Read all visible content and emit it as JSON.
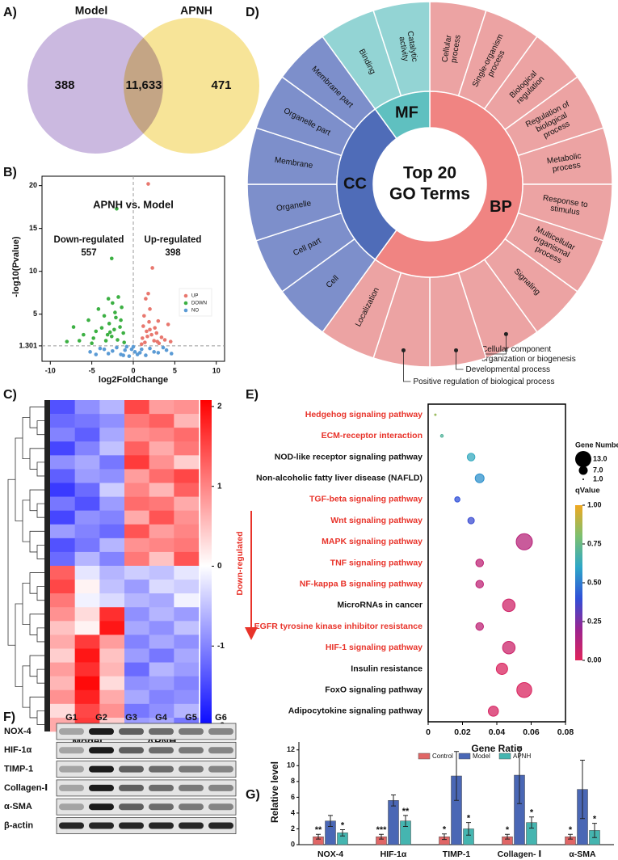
{
  "chart_data": [
    {
      "panel": "A)",
      "type": "venn",
      "sets": [
        "Model",
        "APNH"
      ],
      "colors": [
        "#c2addb",
        "#f6df86"
      ],
      "values": [
        388,
        11633,
        471
      ],
      "value_labels": [
        "388",
        "11,633",
        "471"
      ]
    },
    {
      "panel": "B)",
      "type": "scatter",
      "title": "APNH vs. Model",
      "xlabel": "log2FoldChange",
      "ylabel": "-log10(Pvalue)",
      "xlim": [
        -11,
        11
      ],
      "ylim": [
        -0.5,
        21.1
      ],
      "xticks": [
        -10,
        -5,
        0,
        5,
        10
      ],
      "yticks": [
        1.301,
        5,
        10,
        15,
        20
      ],
      "groups": [
        {
          "label": "Down-regulated",
          "count": 557
        },
        {
          "label": "Up-regulated",
          "count": 398
        }
      ],
      "series": [
        {
          "name": "UP",
          "color": "#e8776e",
          "x": [
            1.8,
            2.3,
            1.8,
            1.5,
            2.0,
            3.0,
            4.2,
            2.6,
            1.3,
            1.6,
            2.2,
            3.4,
            4.5,
            1.1,
            2.8,
            1.9,
            3.8,
            1.4,
            2.5,
            3.1,
            1.2,
            2.0,
            1.7,
            2.9,
            1.0
          ],
          "y": [
            20.2,
            10.4,
            7.4,
            6.8,
            5.6,
            4.2,
            3.8,
            3.4,
            4.8,
            3.0,
            2.6,
            2.3,
            1.8,
            2.2,
            2.8,
            4.1,
            2.0,
            1.7,
            1.9,
            1.6,
            3.6,
            3.2,
            2.4,
            1.8,
            1.5
          ]
        },
        {
          "name": "DOWN",
          "color": "#3cb043",
          "x": [
            -2.0,
            -2.6,
            -4.2,
            -7.2,
            -8.0,
            -3.5,
            -3.0,
            -2.5,
            -1.8,
            -5.4,
            -6.0,
            -4.8,
            -3.8,
            -2.9,
            -2.2,
            -1.5,
            -1.2,
            -2.6,
            -3.3,
            -4.5,
            -1.6,
            -1.9,
            -5.0,
            -6.5,
            -2.3,
            -1.4,
            -2.8,
            -3.1,
            -1.1,
            -2.1
          ],
          "y": [
            17.3,
            11.5,
            5.6,
            3.5,
            1.8,
            4.8,
            6.8,
            6.3,
            7.0,
            4.3,
            2.6,
            2.2,
            3.4,
            3.9,
            5.2,
            4.3,
            2.8,
            2.4,
            1.9,
            3.0,
            3.5,
            2.0,
            1.6,
            1.9,
            3.2,
            5.8,
            2.9,
            2.6,
            1.7,
            4.6
          ]
        },
        {
          "name": "NO",
          "color": "#5b9bd5",
          "x": [
            -5.2,
            -4.0,
            -3.0,
            -2.0,
            -1.0,
            0.0,
            0.5,
            1.0,
            2.0,
            3.0,
            4.0,
            -0.5,
            1.5,
            -1.5,
            -3.5,
            2.5,
            3.6,
            -2.5,
            0.2,
            -0.8,
            -4.5,
            4.6,
            -0.2,
            0.8,
            -1.2
          ],
          "y": [
            0.6,
            1.0,
            0.4,
            1.1,
            0.8,
            1.2,
            0.3,
            0.9,
            1.0,
            0.5,
            0.8,
            0.1,
            0.2,
            0.3,
            0.9,
            0.6,
            1.1,
            0.7,
            0.6,
            1.2,
            0.3,
            0.4,
            0.9,
            0.5,
            0.2
          ]
        }
      ]
    },
    {
      "panel": "C)",
      "type": "heatmap",
      "groups": [
        "Model",
        "APNH"
      ],
      "colormap": [
        "#0000ff",
        "#ffffff",
        "#ff0000"
      ],
      "zlim": [
        -2.07,
        2.08
      ],
      "zticks": [
        2,
        1,
        0,
        -1,
        -2
      ],
      "values": [
        [
          -1.4,
          -0.9,
          -0.6,
          1.5,
          0.8,
          0.9
        ],
        [
          -1.2,
          -1.1,
          -0.9,
          1.1,
          1.3,
          0.6
        ],
        [
          -1.0,
          -1.3,
          -0.7,
          0.9,
          1.0,
          1.2
        ],
        [
          -1.5,
          -1.0,
          -0.5,
          1.3,
          0.7,
          1.1
        ],
        [
          -0.9,
          -0.7,
          -1.1,
          1.6,
          0.9,
          0.4
        ],
        [
          -1.3,
          -0.8,
          -0.9,
          0.8,
          1.2,
          1.5
        ],
        [
          -1.6,
          -1.2,
          -0.4,
          1.0,
          0.6,
          1.3
        ],
        [
          -1.1,
          -1.4,
          -0.8,
          1.2,
          1.1,
          0.7
        ],
        [
          -1.5,
          -0.9,
          -1.0,
          0.7,
          1.4,
          0.9
        ],
        [
          -0.8,
          -1.0,
          -1.2,
          1.4,
          0.8,
          1.0
        ],
        [
          -1.4,
          -1.1,
          -0.6,
          0.9,
          1.0,
          1.1
        ],
        [
          -1.2,
          -0.6,
          -1.0,
          1.1,
          0.5,
          1.4
        ],
        [
          1.3,
          -0.2,
          -0.6,
          -0.4,
          -0.5,
          -0.2
        ],
        [
          1.5,
          0.1,
          -0.5,
          -0.8,
          -0.3,
          -0.4
        ],
        [
          1.1,
          -0.1,
          -0.3,
          -0.6,
          -0.7,
          -0.1
        ],
        [
          0.9,
          0.3,
          1.7,
          -0.9,
          -0.6,
          -0.8
        ],
        [
          0.5,
          0.1,
          1.9,
          -0.7,
          -0.9,
          -0.5
        ],
        [
          0.7,
          1.6,
          0.8,
          -1.0,
          -0.7,
          -0.9
        ],
        [
          0.4,
          1.9,
          0.5,
          -0.8,
          -1.1,
          -0.7
        ],
        [
          0.8,
          1.7,
          0.6,
          -1.2,
          -0.6,
          -0.8
        ],
        [
          0.6,
          2.0,
          0.3,
          -0.9,
          -0.8,
          -1.0
        ],
        [
          0.9,
          1.8,
          0.7,
          -0.7,
          -1.0,
          -0.9
        ],
        [
          0.3,
          1.5,
          0.9,
          -1.1,
          -0.9,
          -0.6
        ],
        [
          0.7,
          1.6,
          0.4,
          -0.8,
          -0.7,
          -1.1
        ]
      ]
    },
    {
      "panel": "D)",
      "type": "sunburst",
      "center": [
        "Top 20",
        "GO Terms"
      ],
      "groups": [
        {
          "name": "BP",
          "color": "#f08482",
          "term_color": "#eca3a3",
          "terms": [
            {
              "label": "Cellular process"
            },
            {
              "label": "Single-organism process"
            },
            {
              "label": "Biological regulation"
            },
            {
              "label": "Regulation of biological process"
            },
            {
              "label": "Metabolic process"
            },
            {
              "label": "Response to stimulus"
            },
            {
              "label": "Multicellular organismal process"
            },
            {
              "label": "Signaling"
            },
            {
              "label": "Cellular component organization or biogenesis",
              "callout": true
            },
            {
              "label": "Developmental process",
              "callout": true
            },
            {
              "label": "Positive regulation of biological process",
              "callout": true
            },
            {
              "label": "Localization"
            }
          ]
        },
        {
          "name": "CC",
          "color": "#4f6cb8",
          "term_color": "#7d8fcb",
          "terms": [
            {
              "label": "Cell"
            },
            {
              "label": "Cell part"
            },
            {
              "label": "Organelle"
            },
            {
              "label": "Membrane"
            },
            {
              "label": "Organelle part"
            },
            {
              "label": "Membrane part"
            }
          ]
        },
        {
          "name": "MF",
          "color": "#5fc0c0",
          "term_color": "#93d4d4",
          "terms": [
            {
              "label": "Binding"
            },
            {
              "label": "Catalytic activity"
            }
          ]
        }
      ]
    },
    {
      "panel": "E)",
      "type": "bubble",
      "xlabel": "Gene Ratio",
      "annotation": "Down-regulated",
      "categories": [
        "Hedgehog signaling pathway",
        "ECM-receptor interaction",
        "NOD-like receptor signaling pathway",
        "Non-alcoholic fatty liver disease (NAFLD)",
        "TGF-beta signaling pathway",
        "Wnt signaling pathway",
        "MAPK signaling pathway",
        "TNF signaling pathway",
        "NF-kappa B signaling pathway",
        "MicroRNAs in cancer",
        "EGFR tyrosine kinase inhibitor resistance",
        "HIF-1 signaling pathway",
        "Insulin resistance",
        "FoxO signaling pathway",
        "Adipocytokine signaling pathway"
      ],
      "label_colors": [
        "#e8332a",
        "#e8332a",
        "#111111",
        "#111111",
        "#e8332a",
        "#e8332a",
        "#e8332a",
        "#e8332a",
        "#e8332a",
        "#111111",
        "#e8332a",
        "#e8332a",
        "#111111",
        "#111111",
        "#111111"
      ],
      "x": [
        0.0042,
        0.008,
        0.025,
        0.03,
        0.017,
        0.025,
        0.056,
        0.03,
        0.03,
        0.047,
        0.03,
        0.047,
        0.043,
        0.056,
        0.038
      ],
      "sizes": [
        1,
        2,
        6,
        7,
        4,
        5,
        13,
        6,
        6,
        10,
        6,
        10,
        9,
        12,
        8
      ],
      "qvalues": [
        0.85,
        0.7,
        0.62,
        0.55,
        0.4,
        0.38,
        0.12,
        0.1,
        0.1,
        0.05,
        0.1,
        0.06,
        0.02,
        0.02,
        0.03
      ],
      "xlim": [
        0,
        0.08
      ],
      "xticks": [
        0,
        0.02,
        0.04,
        0.06,
        0.08
      ],
      "size_title": "Gene Number",
      "size_ticks": [
        {
          "value": 13,
          "label": "13.0"
        },
        {
          "value": 7,
          "label": "7.0"
        },
        {
          "value": 1,
          "label": "1.0"
        }
      ],
      "color_title": "qValue",
      "qlim": [
        0,
        1
      ],
      "qticks": [
        {
          "value": 1,
          "label": "1.00"
        },
        {
          "value": 0.75,
          "label": "0.75"
        },
        {
          "value": 0.5,
          "label": "0.50"
        },
        {
          "value": 0.25,
          "label": "0.25"
        },
        {
          "value": 0,
          "label": "0.00"
        }
      ],
      "colormap": [
        "#e0245a",
        "#9b2490",
        "#3050d8",
        "#2ea7c8",
        "#7cc070",
        "#f0a820"
      ]
    },
    {
      "panel": "F)",
      "type": "blot",
      "lanes": [
        "G1",
        "G2",
        "G3",
        "G4",
        "G5",
        "G6"
      ],
      "rows": [
        "NOX-4",
        "HIF-1α",
        "TIMP-1",
        "Collagen-Ⅰ",
        "α-SMA",
        "β-actin"
      ]
    },
    {
      "panel": "G)",
      "type": "bar",
      "ylabel": "Relative level",
      "categories": [
        "NOX-4",
        "HIF-1α",
        "TIMP-1",
        "Collagen- Ⅰ",
        "α-SMA"
      ],
      "ylim": [
        0,
        13
      ],
      "yticks": [
        0,
        2,
        4,
        6,
        8,
        10,
        12
      ],
      "series": [
        {
          "name": "Control",
          "color": "#e06666",
          "values": [
            1,
            1,
            1,
            1,
            1
          ],
          "errors": [
            0.3,
            0.3,
            0.35,
            0.3,
            0.3
          ],
          "labels": [
            "**",
            "***",
            "*",
            "*",
            "*"
          ]
        },
        {
          "name": "Model",
          "color": "#4a67b5",
          "values": [
            3.0,
            5.6,
            8.7,
            8.8,
            7.0
          ],
          "errors": [
            0.7,
            0.7,
            3.1,
            3.6,
            3.7
          ]
        },
        {
          "name": "APNH",
          "color": "#45b5b0",
          "values": [
            1.5,
            3.0,
            2.0,
            2.8,
            1.8
          ],
          "errors": [
            0.4,
            0.7,
            0.8,
            0.7,
            0.9
          ],
          "labels": [
            "*",
            "**",
            "*",
            "*",
            "*"
          ]
        }
      ]
    }
  ]
}
